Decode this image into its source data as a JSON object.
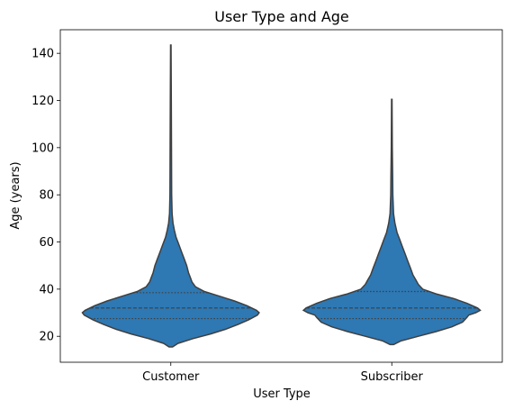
{
  "chart_data": {
    "type": "violin",
    "title": "User Type and Age",
    "xlabel": "User Type",
    "ylabel": "Age (years)",
    "ylim": [
      9,
      150
    ],
    "yticks": [
      20,
      40,
      60,
      80,
      100,
      120,
      140
    ],
    "grid": false,
    "color": "#2e78b3",
    "categories": [
      "Customer",
      "Subscriber"
    ],
    "violins": [
      {
        "name": "Customer",
        "min": 15.5,
        "max": 143.5,
        "quartiles": [
          27.5,
          32,
          38.5
        ],
        "profile": [
          [
            15.5,
            0.02
          ],
          [
            17,
            0.08
          ],
          [
            19,
            0.25
          ],
          [
            21,
            0.45
          ],
          [
            23,
            0.62
          ],
          [
            25,
            0.76
          ],
          [
            27,
            0.88
          ],
          [
            29,
            0.98
          ],
          [
            30,
            1.0
          ],
          [
            31,
            0.97
          ],
          [
            33,
            0.86
          ],
          [
            35,
            0.72
          ],
          [
            37,
            0.55
          ],
          [
            39,
            0.38
          ],
          [
            41,
            0.28
          ],
          [
            43,
            0.24
          ],
          [
            45,
            0.22
          ],
          [
            47,
            0.2
          ],
          [
            50,
            0.18
          ],
          [
            53,
            0.15
          ],
          [
            56,
            0.12
          ],
          [
            59,
            0.09
          ],
          [
            62,
            0.06
          ],
          [
            65,
            0.04
          ],
          [
            68,
            0.025
          ],
          [
            72,
            0.015
          ],
          [
            80,
            0.01
          ],
          [
            100,
            0.008
          ],
          [
            120,
            0.006
          ],
          [
            143.5,
            0.003
          ]
        ]
      },
      {
        "name": "Subscriber",
        "min": 16.5,
        "max": 120.5,
        "quartiles": [
          27.5,
          32,
          39
        ],
        "profile": [
          [
            16.5,
            0.02
          ],
          [
            18,
            0.1
          ],
          [
            20,
            0.3
          ],
          [
            22,
            0.5
          ],
          [
            24,
            0.68
          ],
          [
            26,
            0.8
          ],
          [
            28,
            0.85
          ],
          [
            29,
            0.87
          ],
          [
            30,
            0.95
          ],
          [
            31,
            1.0
          ],
          [
            32,
            0.97
          ],
          [
            34,
            0.85
          ],
          [
            36,
            0.7
          ],
          [
            38,
            0.5
          ],
          [
            40,
            0.35
          ],
          [
            42,
            0.3
          ],
          [
            44,
            0.27
          ],
          [
            46,
            0.24
          ],
          [
            49,
            0.21
          ],
          [
            52,
            0.18
          ],
          [
            55,
            0.15
          ],
          [
            58,
            0.12
          ],
          [
            61,
            0.09
          ],
          [
            64,
            0.06
          ],
          [
            68,
            0.035
          ],
          [
            72,
            0.02
          ],
          [
            80,
            0.012
          ],
          [
            88,
            0.01
          ],
          [
            100,
            0.006
          ],
          [
            120.5,
            0.003
          ]
        ]
      }
    ]
  }
}
